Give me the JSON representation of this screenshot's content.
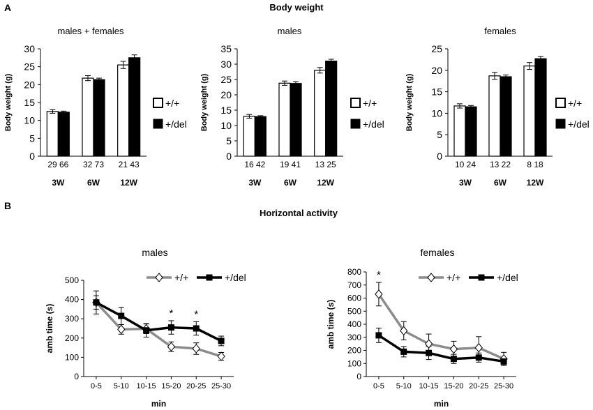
{
  "panels": {
    "a": {
      "letter": "A",
      "title": "Body weight",
      "xgroup_labels": [
        "3W",
        "6W",
        "12W"
      ],
      "legend": {
        "wt": "+/+",
        "del": "+/del"
      },
      "colors": {
        "wt": "#ffffff",
        "del": "#000000"
      }
    },
    "b": {
      "letter": "B",
      "title": "Horizontal activity",
      "legend": {
        "wt": "+/+",
        "del": "+/del"
      },
      "colors": {
        "wt": "#8c8c8c",
        "del": "#000000"
      }
    }
  },
  "chart_data": [
    {
      "type": "bar",
      "title": "males + females",
      "ylabel": "Body weight (g)",
      "ylim": [
        0,
        30
      ],
      "yticks": [
        0,
        5,
        10,
        15,
        20,
        25,
        30
      ],
      "categories": [
        "3W",
        "6W",
        "12W"
      ],
      "series": [
        {
          "name": "+/+",
          "values": [
            12.5,
            21.8,
            25.5
          ],
          "errors": [
            0.5,
            0.7,
            1.0
          ]
        },
        {
          "name": "+/del",
          "values": [
            12.3,
            21.4,
            27.5
          ],
          "errors": [
            0.3,
            0.4,
            0.8
          ]
        }
      ],
      "n_labels": [
        [
          "29",
          "66"
        ],
        [
          "32",
          "73"
        ],
        [
          "21",
          "43"
        ]
      ]
    },
    {
      "type": "bar",
      "title": "males",
      "ylabel": "Body weight (g)",
      "ylim": [
        0,
        35
      ],
      "yticks": [
        0,
        5,
        10,
        15,
        20,
        25,
        30,
        35
      ],
      "categories": [
        "3W",
        "6W",
        "12W"
      ],
      "series": [
        {
          "name": "+/+",
          "values": [
            13.0,
            23.8,
            28.0
          ],
          "errors": [
            0.6,
            0.7,
            0.9
          ]
        },
        {
          "name": "+/del",
          "values": [
            12.9,
            23.7,
            31.0
          ],
          "errors": [
            0.3,
            0.6,
            0.6
          ]
        }
      ],
      "n_labels": [
        [
          "16",
          "42"
        ],
        [
          "19",
          "41"
        ],
        [
          "13",
          "25"
        ]
      ]
    },
    {
      "type": "bar",
      "title": "females",
      "ylabel": "Body weight (g)",
      "ylim": [
        0,
        25
      ],
      "yticks": [
        0,
        5,
        10,
        15,
        20,
        25
      ],
      "categories": [
        "3W",
        "6W",
        "12W"
      ],
      "series": [
        {
          "name": "+/+",
          "values": [
            11.7,
            18.7,
            21.0
          ],
          "errors": [
            0.5,
            0.8,
            0.8
          ]
        },
        {
          "name": "+/del",
          "values": [
            11.5,
            18.5,
            22.7
          ],
          "errors": [
            0.3,
            0.4,
            0.5
          ]
        }
      ],
      "n_labels": [
        [
          "10",
          "24"
        ],
        [
          "13",
          "22"
        ],
        [
          "8",
          "18"
        ]
      ]
    },
    {
      "type": "line",
      "title": "males",
      "xlabel": "min",
      "ylabel": "amb time (s)",
      "ylim": [
        0,
        500
      ],
      "yticks": [
        0,
        100,
        200,
        300,
        400,
        500
      ],
      "categories": [
        "0-5",
        "5-10",
        "10-15",
        "15-20",
        "20-25",
        "25-30"
      ],
      "series": [
        {
          "name": "+/+",
          "values": [
            385,
            245,
            248,
            155,
            145,
            105
          ],
          "errors": [
            60,
            25,
            25,
            25,
            30,
            20
          ]
        },
        {
          "name": "+/del",
          "values": [
            385,
            315,
            240,
            255,
            250,
            185
          ],
          "errors": [
            35,
            45,
            35,
            35,
            35,
            25
          ]
        }
      ],
      "significance": [
        {
          "index": 3,
          "label": "*"
        },
        {
          "index": 4,
          "label": "*"
        }
      ]
    },
    {
      "type": "line",
      "title": "females",
      "xlabel": "min",
      "ylabel": "amb time (s)",
      "ylim": [
        0,
        800
      ],
      "yticks": [
        0,
        100,
        200,
        300,
        400,
        500,
        600,
        700,
        800
      ],
      "categories": [
        "0-5",
        "5-10",
        "10-15",
        "15-20",
        "20-25",
        "25-30"
      ],
      "series": [
        {
          "name": "+/+",
          "values": [
            630,
            350,
            250,
            210,
            220,
            135
          ],
          "errors": [
            90,
            70,
            75,
            60,
            85,
            50
          ]
        },
        {
          "name": "+/del",
          "values": [
            315,
            190,
            180,
            135,
            145,
            115
          ],
          "errors": [
            55,
            40,
            50,
            35,
            35,
            30
          ]
        }
      ],
      "significance": [
        {
          "index": 0,
          "label": "*"
        }
      ]
    }
  ]
}
